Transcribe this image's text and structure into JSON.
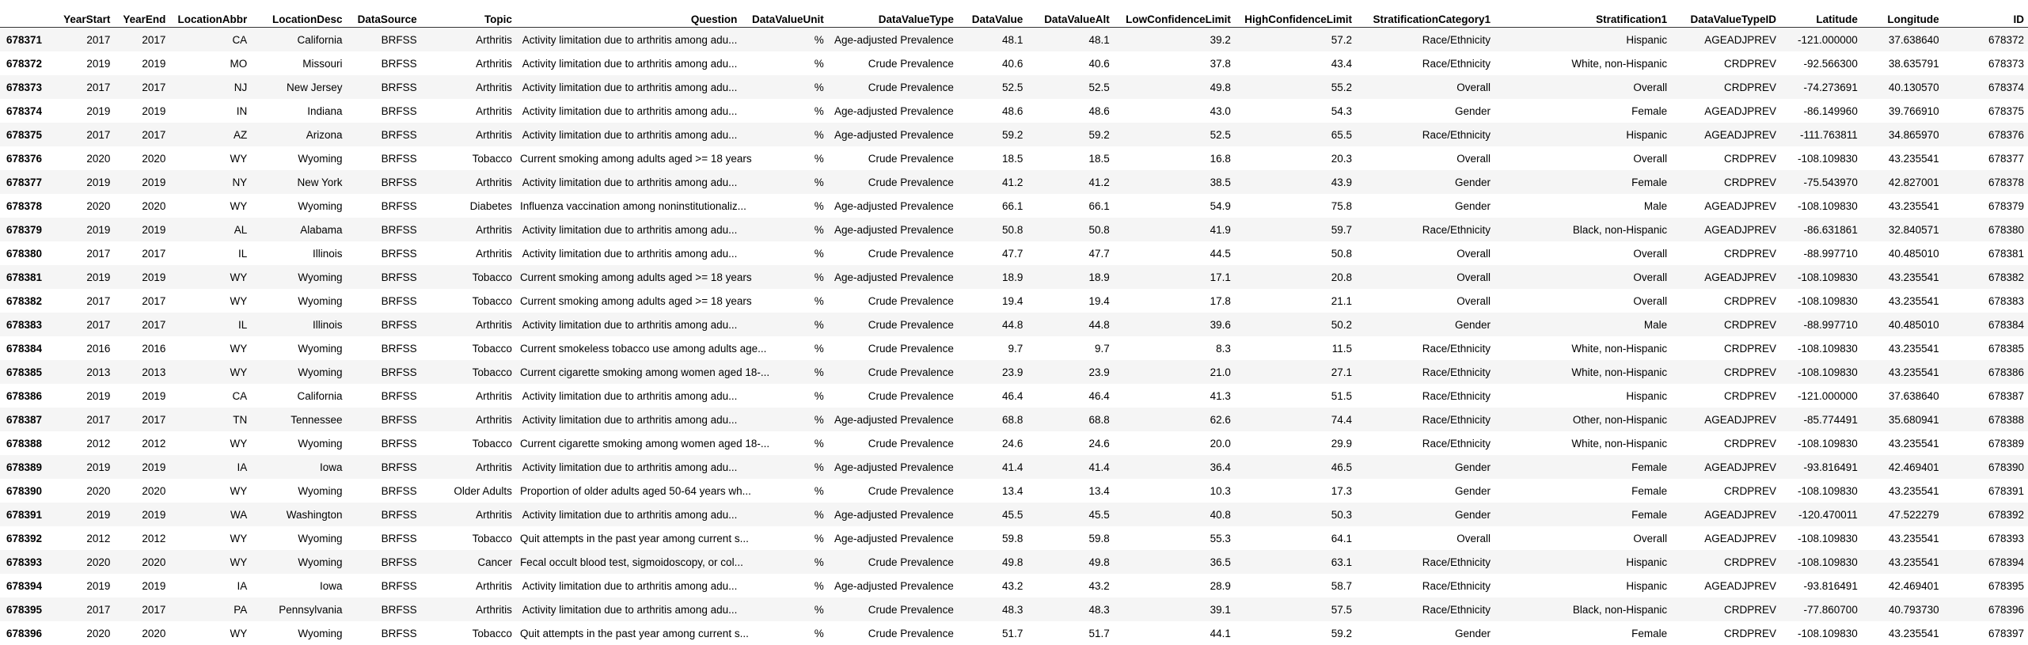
{
  "columns": [
    "",
    "YearStart",
    "YearEnd",
    "LocationAbbr",
    "LocationDesc",
    "DataSource",
    "Topic",
    "Question",
    "DataValueUnit",
    "DataValueType",
    "DataValue",
    "DataValueAlt",
    "LowConfidenceLimit",
    "HighConfidenceLimit",
    "StratificationCategory1",
    "Stratification1",
    "DataValueTypeID",
    "Latitude",
    "Longitude",
    "ID"
  ],
  "rows": [
    [
      "678371",
      "2017",
      "2017",
      "CA",
      "California",
      "BRFSS",
      "Arthritis",
      "Activity limitation due to arthritis among adu...",
      "%",
      "Age-adjusted Prevalence",
      "48.1",
      "48.1",
      "39.2",
      "57.2",
      "Race/Ethnicity",
      "Hispanic",
      "AGEADJPREV",
      "-121.000000",
      "37.638640",
      "678372"
    ],
    [
      "678372",
      "2019",
      "2019",
      "MO",
      "Missouri",
      "BRFSS",
      "Arthritis",
      "Activity limitation due to arthritis among adu...",
      "%",
      "Crude Prevalence",
      "40.6",
      "40.6",
      "37.8",
      "43.4",
      "Race/Ethnicity",
      "White, non-Hispanic",
      "CRDPREV",
      "-92.566300",
      "38.635791",
      "678373"
    ],
    [
      "678373",
      "2017",
      "2017",
      "NJ",
      "New Jersey",
      "BRFSS",
      "Arthritis",
      "Activity limitation due to arthritis among adu...",
      "%",
      "Crude Prevalence",
      "52.5",
      "52.5",
      "49.8",
      "55.2",
      "Overall",
      "Overall",
      "CRDPREV",
      "-74.273691",
      "40.130570",
      "678374"
    ],
    [
      "678374",
      "2019",
      "2019",
      "IN",
      "Indiana",
      "BRFSS",
      "Arthritis",
      "Activity limitation due to arthritis among adu...",
      "%",
      "Age-adjusted Prevalence",
      "48.6",
      "48.6",
      "43.0",
      "54.3",
      "Gender",
      "Female",
      "AGEADJPREV",
      "-86.149960",
      "39.766910",
      "678375"
    ],
    [
      "678375",
      "2017",
      "2017",
      "AZ",
      "Arizona",
      "BRFSS",
      "Arthritis",
      "Activity limitation due to arthritis among adu...",
      "%",
      "Age-adjusted Prevalence",
      "59.2",
      "59.2",
      "52.5",
      "65.5",
      "Race/Ethnicity",
      "Hispanic",
      "AGEADJPREV",
      "-111.763811",
      "34.865970",
      "678376"
    ],
    [
      "678376",
      "2020",
      "2020",
      "WY",
      "Wyoming",
      "BRFSS",
      "Tobacco",
      "Current smoking among adults aged >= 18 years",
      "%",
      "Crude Prevalence",
      "18.5",
      "18.5",
      "16.8",
      "20.3",
      "Overall",
      "Overall",
      "CRDPREV",
      "-108.109830",
      "43.235541",
      "678377"
    ],
    [
      "678377",
      "2019",
      "2019",
      "NY",
      "New York",
      "BRFSS",
      "Arthritis",
      "Activity limitation due to arthritis among adu...",
      "%",
      "Crude Prevalence",
      "41.2",
      "41.2",
      "38.5",
      "43.9",
      "Gender",
      "Female",
      "CRDPREV",
      "-75.543970",
      "42.827001",
      "678378"
    ],
    [
      "678378",
      "2020",
      "2020",
      "WY",
      "Wyoming",
      "BRFSS",
      "Diabetes",
      "Influenza vaccination among noninstitutionaliz...",
      "%",
      "Age-adjusted Prevalence",
      "66.1",
      "66.1",
      "54.9",
      "75.8",
      "Gender",
      "Male",
      "AGEADJPREV",
      "-108.109830",
      "43.235541",
      "678379"
    ],
    [
      "678379",
      "2019",
      "2019",
      "AL",
      "Alabama",
      "BRFSS",
      "Arthritis",
      "Activity limitation due to arthritis among adu...",
      "%",
      "Age-adjusted Prevalence",
      "50.8",
      "50.8",
      "41.9",
      "59.7",
      "Race/Ethnicity",
      "Black, non-Hispanic",
      "AGEADJPREV",
      "-86.631861",
      "32.840571",
      "678380"
    ],
    [
      "678380",
      "2017",
      "2017",
      "IL",
      "Illinois",
      "BRFSS",
      "Arthritis",
      "Activity limitation due to arthritis among adu...",
      "%",
      "Crude Prevalence",
      "47.7",
      "47.7",
      "44.5",
      "50.8",
      "Overall",
      "Overall",
      "CRDPREV",
      "-88.997710",
      "40.485010",
      "678381"
    ],
    [
      "678381",
      "2019",
      "2019",
      "WY",
      "Wyoming",
      "BRFSS",
      "Tobacco",
      "Current smoking among adults aged >= 18 years",
      "%",
      "Age-adjusted Prevalence",
      "18.9",
      "18.9",
      "17.1",
      "20.8",
      "Overall",
      "Overall",
      "AGEADJPREV",
      "-108.109830",
      "43.235541",
      "678382"
    ],
    [
      "678382",
      "2017",
      "2017",
      "WY",
      "Wyoming",
      "BRFSS",
      "Tobacco",
      "Current smoking among adults aged >= 18 years",
      "%",
      "Crude Prevalence",
      "19.4",
      "19.4",
      "17.8",
      "21.1",
      "Overall",
      "Overall",
      "CRDPREV",
      "-108.109830",
      "43.235541",
      "678383"
    ],
    [
      "678383",
      "2017",
      "2017",
      "IL",
      "Illinois",
      "BRFSS",
      "Arthritis",
      "Activity limitation due to arthritis among adu...",
      "%",
      "Crude Prevalence",
      "44.8",
      "44.8",
      "39.6",
      "50.2",
      "Gender",
      "Male",
      "CRDPREV",
      "-88.997710",
      "40.485010",
      "678384"
    ],
    [
      "678384",
      "2016",
      "2016",
      "WY",
      "Wyoming",
      "BRFSS",
      "Tobacco",
      "Current smokeless tobacco use among adults age...",
      "%",
      "Crude Prevalence",
      "9.7",
      "9.7",
      "8.3",
      "11.5",
      "Race/Ethnicity",
      "White, non-Hispanic",
      "CRDPREV",
      "-108.109830",
      "43.235541",
      "678385"
    ],
    [
      "678385",
      "2013",
      "2013",
      "WY",
      "Wyoming",
      "BRFSS",
      "Tobacco",
      "Current cigarette smoking among women aged 18-...",
      "%",
      "Crude Prevalence",
      "23.9",
      "23.9",
      "21.0",
      "27.1",
      "Race/Ethnicity",
      "White, non-Hispanic",
      "CRDPREV",
      "-108.109830",
      "43.235541",
      "678386"
    ],
    [
      "678386",
      "2019",
      "2019",
      "CA",
      "California",
      "BRFSS",
      "Arthritis",
      "Activity limitation due to arthritis among adu...",
      "%",
      "Crude Prevalence",
      "46.4",
      "46.4",
      "41.3",
      "51.5",
      "Race/Ethnicity",
      "Hispanic",
      "CRDPREV",
      "-121.000000",
      "37.638640",
      "678387"
    ],
    [
      "678387",
      "2017",
      "2017",
      "TN",
      "Tennessee",
      "BRFSS",
      "Arthritis",
      "Activity limitation due to arthritis among adu...",
      "%",
      "Age-adjusted Prevalence",
      "68.8",
      "68.8",
      "62.6",
      "74.4",
      "Race/Ethnicity",
      "Other, non-Hispanic",
      "AGEADJPREV",
      "-85.774491",
      "35.680941",
      "678388"
    ],
    [
      "678388",
      "2012",
      "2012",
      "WY",
      "Wyoming",
      "BRFSS",
      "Tobacco",
      "Current cigarette smoking among women aged 18-...",
      "%",
      "Crude Prevalence",
      "24.6",
      "24.6",
      "20.0",
      "29.9",
      "Race/Ethnicity",
      "White, non-Hispanic",
      "CRDPREV",
      "-108.109830",
      "43.235541",
      "678389"
    ],
    [
      "678389",
      "2019",
      "2019",
      "IA",
      "Iowa",
      "BRFSS",
      "Arthritis",
      "Activity limitation due to arthritis among adu...",
      "%",
      "Age-adjusted Prevalence",
      "41.4",
      "41.4",
      "36.4",
      "46.5",
      "Gender",
      "Female",
      "AGEADJPREV",
      "-93.816491",
      "42.469401",
      "678390"
    ],
    [
      "678390",
      "2020",
      "2020",
      "WY",
      "Wyoming",
      "BRFSS",
      "Older Adults",
      "Proportion of older adults aged 50-64 years wh...",
      "%",
      "Crude Prevalence",
      "13.4",
      "13.4",
      "10.3",
      "17.3",
      "Gender",
      "Female",
      "CRDPREV",
      "-108.109830",
      "43.235541",
      "678391"
    ],
    [
      "678391",
      "2019",
      "2019",
      "WA",
      "Washington",
      "BRFSS",
      "Arthritis",
      "Activity limitation due to arthritis among adu...",
      "%",
      "Age-adjusted Prevalence",
      "45.5",
      "45.5",
      "40.8",
      "50.3",
      "Gender",
      "Female",
      "AGEADJPREV",
      "-120.470011",
      "47.522279",
      "678392"
    ],
    [
      "678392",
      "2012",
      "2012",
      "WY",
      "Wyoming",
      "BRFSS",
      "Tobacco",
      "Quit attempts in the past year among current s...",
      "%",
      "Age-adjusted Prevalence",
      "59.8",
      "59.8",
      "55.3",
      "64.1",
      "Overall",
      "Overall",
      "AGEADJPREV",
      "-108.109830",
      "43.235541",
      "678393"
    ],
    [
      "678393",
      "2020",
      "2020",
      "WY",
      "Wyoming",
      "BRFSS",
      "Cancer",
      "Fecal occult blood test, sigmoidoscopy, or col...",
      "%",
      "Crude Prevalence",
      "49.8",
      "49.8",
      "36.5",
      "63.1",
      "Race/Ethnicity",
      "Hispanic",
      "CRDPREV",
      "-108.109830",
      "43.235541",
      "678394"
    ],
    [
      "678394",
      "2019",
      "2019",
      "IA",
      "Iowa",
      "BRFSS",
      "Arthritis",
      "Activity limitation due to arthritis among adu...",
      "%",
      "Age-adjusted Prevalence",
      "43.2",
      "43.2",
      "28.9",
      "58.7",
      "Race/Ethnicity",
      "Hispanic",
      "AGEADJPREV",
      "-93.816491",
      "42.469401",
      "678395"
    ],
    [
      "678395",
      "2017",
      "2017",
      "PA",
      "Pennsylvania",
      "BRFSS",
      "Arthritis",
      "Activity limitation due to arthritis among adu...",
      "%",
      "Crude Prevalence",
      "48.3",
      "48.3",
      "39.1",
      "57.5",
      "Race/Ethnicity",
      "Black, non-Hispanic",
      "CRDPREV",
      "-77.860700",
      "40.793730",
      "678396"
    ],
    [
      "678396",
      "2020",
      "2020",
      "WY",
      "Wyoming",
      "BRFSS",
      "Tobacco",
      "Quit attempts in the past year among current s...",
      "%",
      "Crude Prevalence",
      "51.7",
      "51.7",
      "44.1",
      "59.2",
      "Gender",
      "Female",
      "CRDPREV",
      "-108.109830",
      "43.235541",
      "678397"
    ]
  ]
}
